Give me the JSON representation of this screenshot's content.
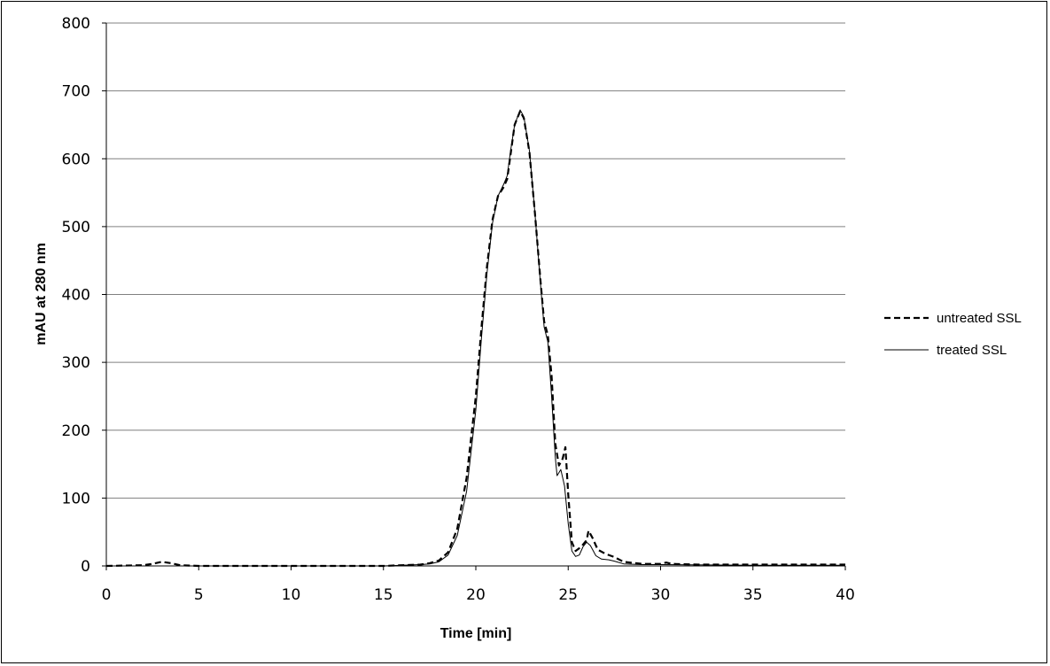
{
  "chart_data": {
    "type": "line",
    "title": "",
    "xlabel": "Time [min]",
    "ylabel": "mAU at 280 nm",
    "xlim": [
      0,
      40
    ],
    "ylim": [
      0,
      800
    ],
    "x_ticks": [
      0,
      5,
      10,
      15,
      20,
      25,
      30,
      35,
      40
    ],
    "y_ticks": [
      0,
      100,
      200,
      300,
      400,
      500,
      600,
      700,
      800
    ],
    "grid": "horizontal",
    "legend_position": "right",
    "series": [
      {
        "name": "untreated SSL",
        "style": "dashed",
        "color": "#000000",
        "points": [
          [
            0,
            0
          ],
          [
            2,
            1
          ],
          [
            2.5,
            3
          ],
          [
            3,
            6
          ],
          [
            3.5,
            4
          ],
          [
            4,
            1
          ],
          [
            5,
            0
          ],
          [
            10,
            0
          ],
          [
            15,
            0
          ],
          [
            16,
            1
          ],
          [
            17,
            2
          ],
          [
            17.5,
            4
          ],
          [
            18,
            8
          ],
          [
            18.5,
            20
          ],
          [
            19,
            55
          ],
          [
            19.5,
            130
          ],
          [
            20,
            250
          ],
          [
            20.3,
            350
          ],
          [
            20.6,
            440
          ],
          [
            20.9,
            510
          ],
          [
            21.2,
            545
          ],
          [
            21.5,
            558
          ],
          [
            21.7,
            570
          ],
          [
            21.9,
            610
          ],
          [
            22.1,
            650
          ],
          [
            22.4,
            670
          ],
          [
            22.6,
            660
          ],
          [
            22.9,
            610
          ],
          [
            23.2,
            520
          ],
          [
            23.5,
            420
          ],
          [
            23.7,
            360
          ],
          [
            23.9,
            340
          ],
          [
            24.1,
            280
          ],
          [
            24.3,
            180
          ],
          [
            24.5,
            148
          ],
          [
            24.7,
            158
          ],
          [
            24.85,
            175
          ],
          [
            25.0,
            105
          ],
          [
            25.2,
            35
          ],
          [
            25.4,
            22
          ],
          [
            25.7,
            28
          ],
          [
            26.0,
            38
          ],
          [
            26.1,
            52
          ],
          [
            26.3,
            42
          ],
          [
            26.6,
            24
          ],
          [
            27.0,
            18
          ],
          [
            27.5,
            13
          ],
          [
            28,
            6
          ],
          [
            29,
            3
          ],
          [
            30,
            3
          ],
          [
            30.3,
            5
          ],
          [
            30.6,
            3
          ],
          [
            32,
            2
          ],
          [
            35,
            2
          ],
          [
            40,
            2
          ]
        ]
      },
      {
        "name": "treated SSL",
        "style": "solid",
        "color": "#000000",
        "points": [
          [
            0,
            0
          ],
          [
            5,
            0
          ],
          [
            10,
            0
          ],
          [
            15,
            0
          ],
          [
            16,
            1
          ],
          [
            17,
            2
          ],
          [
            17.5,
            3
          ],
          [
            18,
            6
          ],
          [
            18.5,
            16
          ],
          [
            19,
            45
          ],
          [
            19.5,
            110
          ],
          [
            20,
            230
          ],
          [
            20.3,
            335
          ],
          [
            20.6,
            430
          ],
          [
            20.9,
            505
          ],
          [
            21.2,
            545
          ],
          [
            21.5,
            562
          ],
          [
            21.7,
            575
          ],
          [
            21.9,
            615
          ],
          [
            22.1,
            650
          ],
          [
            22.4,
            672
          ],
          [
            22.6,
            662
          ],
          [
            22.9,
            612
          ],
          [
            23.2,
            520
          ],
          [
            23.5,
            415
          ],
          [
            23.7,
            352
          ],
          [
            23.9,
            330
          ],
          [
            24.1,
            250
          ],
          [
            24.3,
            160
          ],
          [
            24.4,
            133
          ],
          [
            24.6,
            142
          ],
          [
            24.8,
            118
          ],
          [
            25.0,
            62
          ],
          [
            25.2,
            22
          ],
          [
            25.4,
            14
          ],
          [
            25.6,
            16
          ],
          [
            25.8,
            28
          ],
          [
            26.0,
            35
          ],
          [
            26.2,
            30
          ],
          [
            26.5,
            15
          ],
          [
            26.8,
            10
          ],
          [
            27.2,
            9
          ],
          [
            27.5,
            7
          ],
          [
            28,
            3
          ],
          [
            29,
            2
          ],
          [
            30,
            2
          ],
          [
            35,
            1
          ],
          [
            40,
            1
          ]
        ]
      }
    ]
  }
}
